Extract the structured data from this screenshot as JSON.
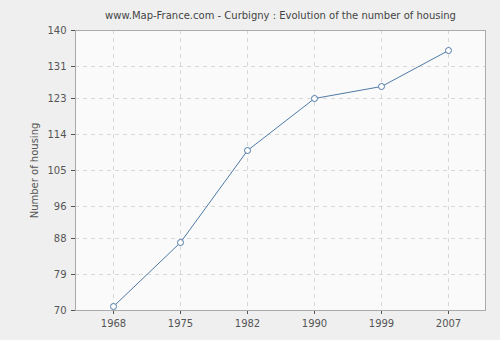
{
  "chart_data": {
    "type": "line",
    "title": "www.Map-France.com - Curbigny : Evolution of the number of housing",
    "y_label": "Number of housing",
    "categories": [
      "1968",
      "1975",
      "1982",
      "1990",
      "1999",
      "2007"
    ],
    "values": [
      71,
      87,
      110,
      123,
      126,
      135
    ],
    "color": "#4f7aa6",
    "marker": "circle",
    "ylim": [
      70,
      140
    ],
    "yticks": [
      70,
      79,
      88,
      96,
      105,
      114,
      123,
      131,
      140
    ],
    "grid": true
  }
}
